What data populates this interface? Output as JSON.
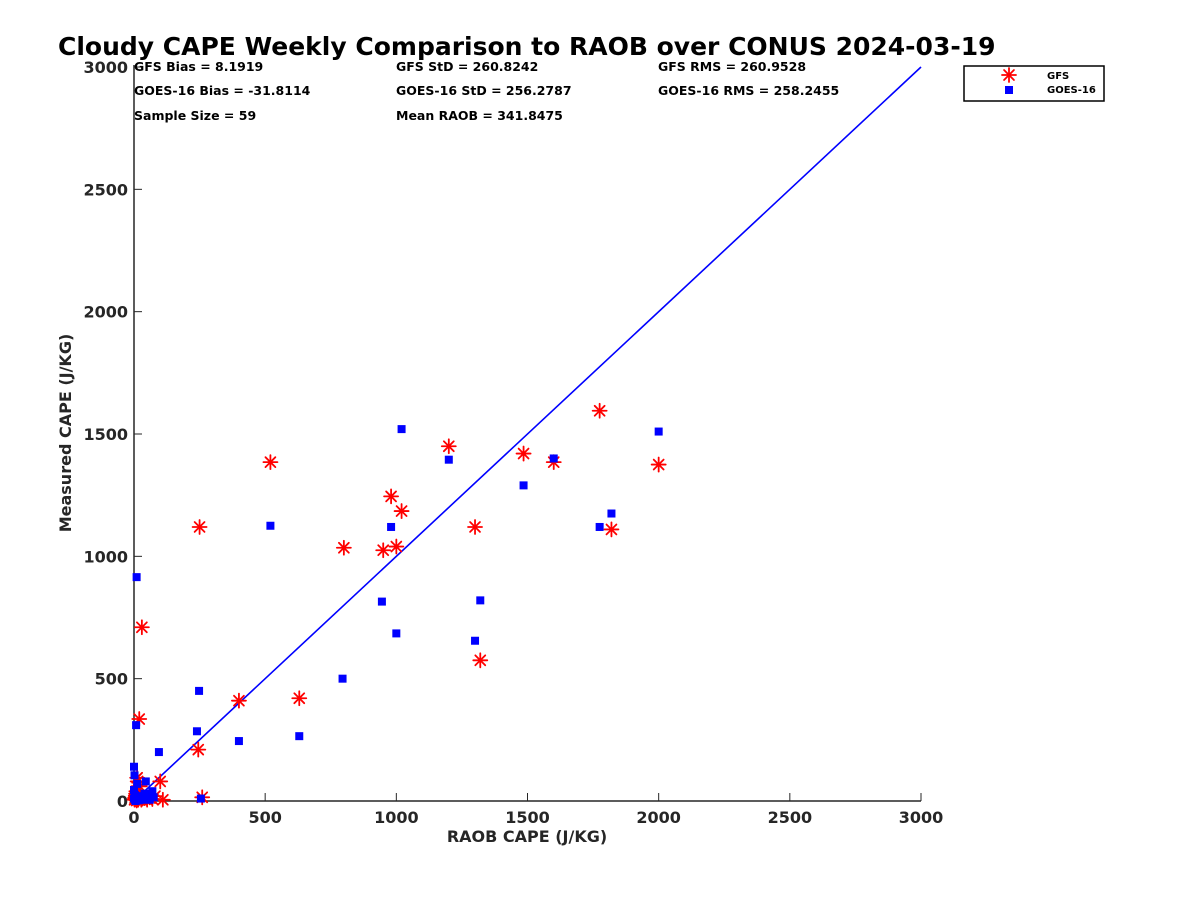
{
  "chart_data": {
    "type": "scatter",
    "title": "Cloudy CAPE Weekly Comparison to RAOB over CONUS 2024-03-19",
    "xlabel": "RAOB CAPE (J/KG)",
    "ylabel": "Measured CAPE (J/KG)",
    "xlim": [
      0,
      3000
    ],
    "ylim": [
      0,
      3000
    ],
    "xticks": [
      "0",
      "500",
      "1000",
      "1500",
      "2000",
      "2500",
      "3000"
    ],
    "yticks": [
      "0",
      "500",
      "1000",
      "1500",
      "2000",
      "2500",
      "3000"
    ],
    "grid": false,
    "legend_position": "top-right, outside plot",
    "reference_line": {
      "x": [
        0,
        3000
      ],
      "y": [
        0,
        3000
      ],
      "color": "#0000ff"
    },
    "stats": {
      "gfs_bias": "GFS Bias = 8.1919",
      "gfs_std": "GFS StD = 260.8242",
      "gfs_rms": "GFS RMS = 260.9528",
      "goes_bias": "GOES-16 Bias = -31.8114",
      "goes_std": "GOES-16 StD = 256.2787",
      "goes_rms": "GOES-16 RMS = 258.2455",
      "sample_size": "Sample Size = 59",
      "mean_raob": "Mean RAOB = 341.8475"
    },
    "series": [
      {
        "name": "GFS",
        "marker": "asterisk",
        "color": "#ff0000",
        "points": [
          [
            2,
            5
          ],
          [
            4,
            12
          ],
          [
            5,
            8
          ],
          [
            6,
            15
          ],
          [
            7,
            22
          ],
          [
            8,
            30
          ],
          [
            9,
            40
          ],
          [
            10,
            2
          ],
          [
            11,
            8
          ],
          [
            12,
            95
          ],
          [
            14,
            80
          ],
          [
            16,
            5
          ],
          [
            18,
            12
          ],
          [
            20,
            335
          ],
          [
            22,
            60
          ],
          [
            25,
            20
          ],
          [
            28,
            5
          ],
          [
            30,
            710
          ],
          [
            32,
            10
          ],
          [
            35,
            15
          ],
          [
            40,
            12
          ],
          [
            50,
            5
          ],
          [
            60,
            15
          ],
          [
            70,
            8
          ],
          [
            80,
            20
          ],
          [
            100,
            80
          ],
          [
            110,
            5
          ],
          [
            245,
            210
          ],
          [
            250,
            1120
          ],
          [
            260,
            15
          ],
          [
            400,
            410
          ],
          [
            520,
            1385
          ],
          [
            630,
            420
          ],
          [
            800,
            1035
          ],
          [
            950,
            1025
          ],
          [
            980,
            1245
          ],
          [
            1000,
            1040
          ],
          [
            1020,
            1185
          ],
          [
            1200,
            1450
          ],
          [
            1300,
            1120
          ],
          [
            1320,
            575
          ],
          [
            1485,
            1420
          ],
          [
            1600,
            1385
          ],
          [
            1775,
            1595
          ],
          [
            1820,
            1110
          ],
          [
            2000,
            1375
          ]
        ]
      },
      {
        "name": "GOES-16",
        "marker": "square",
        "color": "#0000ff",
        "points": [
          [
            0,
            10
          ],
          [
            0,
            45
          ],
          [
            0,
            140
          ],
          [
            2,
            105
          ],
          [
            3,
            25
          ],
          [
            4,
            5
          ],
          [
            5,
            15
          ],
          [
            6,
            0
          ],
          [
            8,
            310
          ],
          [
            10,
            915
          ],
          [
            12,
            70
          ],
          [
            15,
            10
          ],
          [
            18,
            3
          ],
          [
            20,
            20
          ],
          [
            25,
            8
          ],
          [
            30,
            5
          ],
          [
            40,
            30
          ],
          [
            45,
            80
          ],
          [
            50,
            10
          ],
          [
            60,
            5
          ],
          [
            70,
            40
          ],
          [
            75,
            15
          ],
          [
            95,
            200
          ],
          [
            240,
            285
          ],
          [
            248,
            450
          ],
          [
            255,
            10
          ],
          [
            400,
            245
          ],
          [
            520,
            1125
          ],
          [
            630,
            265
          ],
          [
            795,
            500
          ],
          [
            945,
            815
          ],
          [
            980,
            1120
          ],
          [
            1000,
            685
          ],
          [
            1020,
            1520
          ],
          [
            1200,
            1395
          ],
          [
            1300,
            655
          ],
          [
            1320,
            820
          ],
          [
            1485,
            1290
          ],
          [
            1600,
            1400
          ],
          [
            1775,
            1120
          ],
          [
            1820,
            1175
          ],
          [
            2000,
            1510
          ]
        ]
      }
    ]
  }
}
